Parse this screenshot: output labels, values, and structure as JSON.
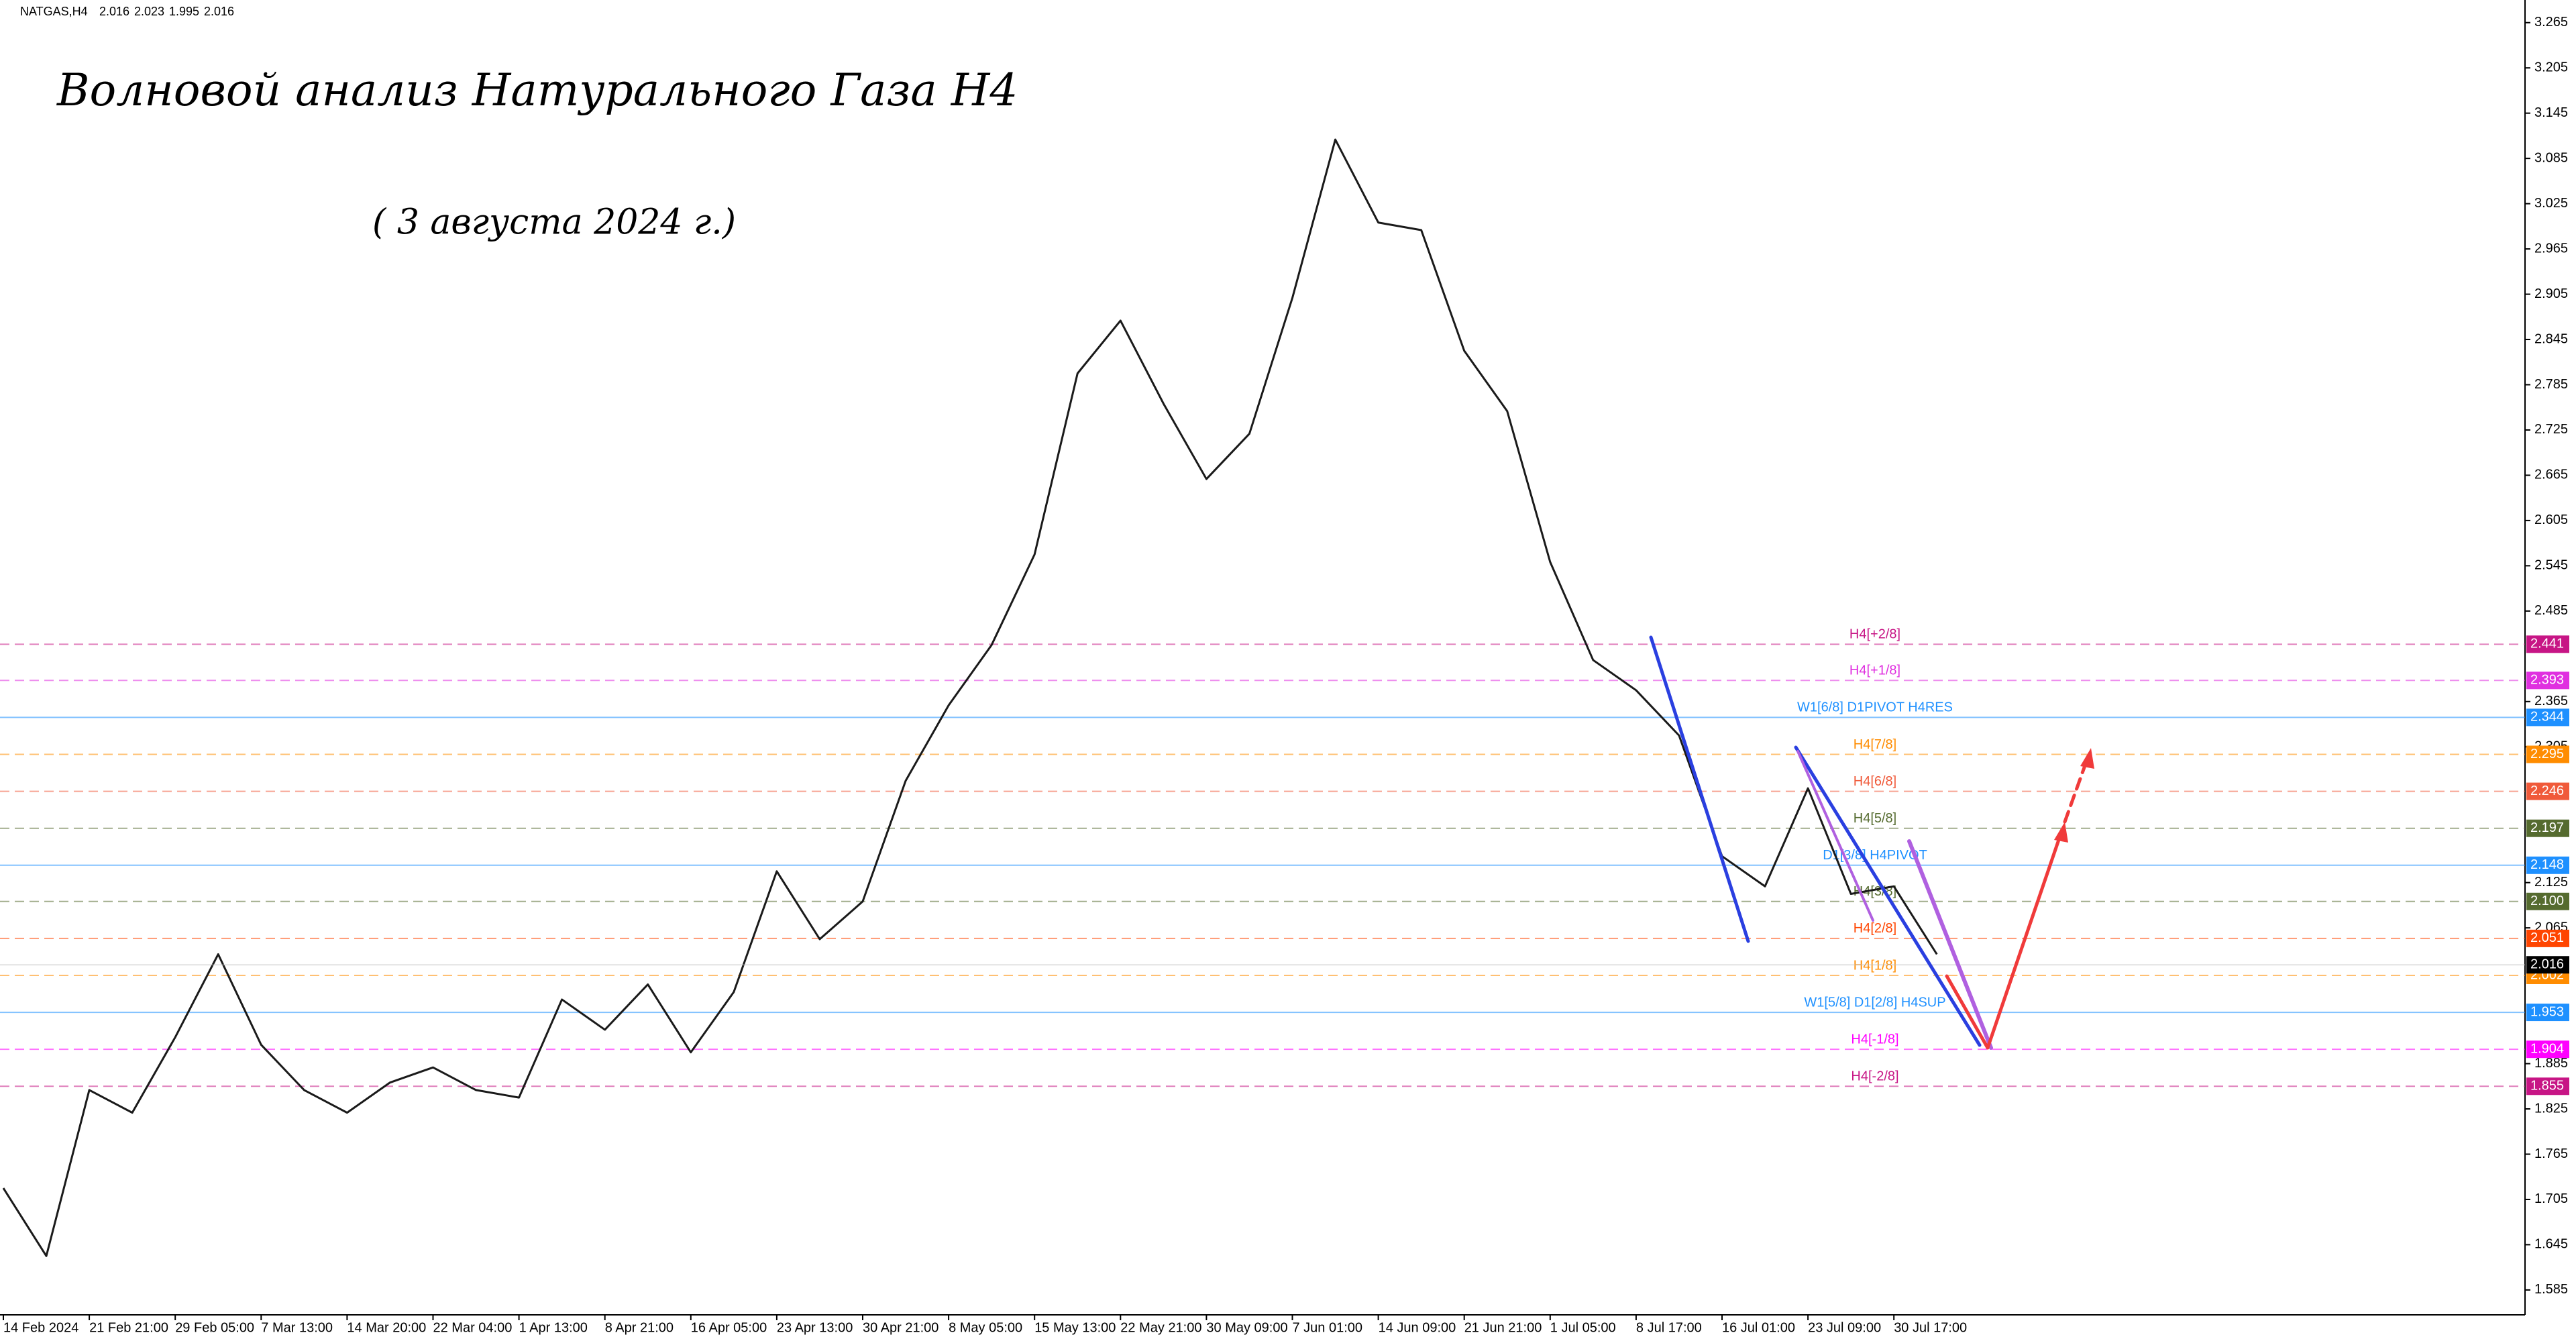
{
  "chart_data": {
    "type": "line",
    "symbol": "NATGAS,H4",
    "ohlc": [
      2.016,
      2.023,
      1.995,
      2.016
    ],
    "title": "Волновой анализ Натурального Газа H4",
    "subtitle": "( 3 августа 2024 г.)",
    "categories": [
      "14 Feb 2024",
      null,
      "21 Feb 21:00",
      null,
      "29 Feb 05:00",
      null,
      "7 Mar 13:00",
      null,
      "14 Mar 20:00",
      null,
      "22 Mar 04:00",
      null,
      "1 Apr 13:00",
      null,
      "8 Apr 21:00",
      null,
      "16 Apr 05:00",
      null,
      "23 Apr 13:00",
      null,
      "30 Apr 21:00",
      null,
      "8 May 05:00",
      null,
      "15 May 13:00",
      null,
      "22 May 21:00",
      null,
      "30 May 09:00",
      null,
      "7 Jun 01:00",
      null,
      "14 Jun 09:00",
      null,
      "21 Jun 21:00",
      null,
      "1 Jul 05:00",
      null,
      "8 Jul 17:00",
      null,
      "16 Jul 01:00",
      null,
      "23 Jul 09:00",
      null,
      "30 Jul 17:00",
      null
    ],
    "series": [
      {
        "color": "#1a1a1a",
        "values": [
          1.72,
          1.63,
          1.85,
          1.82,
          1.92,
          2.03,
          1.91,
          1.85,
          1.82,
          1.86,
          1.88,
          1.85,
          1.84,
          1.97,
          1.93,
          1.99,
          1.9,
          1.98,
          2.14,
          2.05,
          2.1,
          2.26,
          2.36,
          2.44,
          2.56,
          2.8,
          2.87,
          2.76,
          2.66,
          2.72,
          2.9,
          3.11,
          3.0,
          2.99,
          2.83,
          2.75,
          2.55,
          2.42,
          2.38,
          2.32,
          2.16,
          2.12,
          2.25,
          2.11,
          2.12,
          2.03
        ]
      }
    ],
    "ylim": [
      1.552,
      3.295
    ],
    "yticks": [
      3.265,
      3.205,
      3.145,
      3.085,
      3.025,
      2.965,
      2.905,
      2.845,
      2.785,
      2.725,
      2.665,
      2.605,
      2.545,
      2.485,
      2.365,
      2.305,
      2.125,
      2.065,
      1.885,
      1.825,
      1.765,
      1.705,
      1.645,
      1.585
    ],
    "last_price": 2.016,
    "last_color": "#000000",
    "levels": [
      {
        "name": "H4[+2/8]",
        "value": 2.441,
        "color": "#c71585",
        "dashed": true
      },
      {
        "name": "H4[+1/8]",
        "value": 2.393,
        "color": "#e030e0",
        "dashed": true
      },
      {
        "name": "W1[6/8] D1PIVOT H4RES",
        "value": 2.344,
        "color": "#1e90ff",
        "dashed": false
      },
      {
        "name": "H4[7/8]",
        "value": 2.295,
        "color": "#ff8c00",
        "dashed": true
      },
      {
        "name": "H4[6/8]",
        "value": 2.246,
        "color": "#f05a3a",
        "dashed": true
      },
      {
        "name": "H4[5/8]",
        "value": 2.197,
        "color": "#556b2f",
        "dashed": true
      },
      {
        "name": "D1[3/8] H4PIVOT",
        "value": 2.148,
        "color": "#1e90ff",
        "dashed": false
      },
      {
        "name": "H4[3/8]",
        "value": 2.1,
        "value_label": "2.100",
        "color": "#556b2f",
        "dashed": true
      },
      {
        "name": "H4[2/8]",
        "value": 2.051,
        "color": "#ff4500",
        "dashed": true
      },
      {
        "name": "H4[1/8]",
        "value": 2.002,
        "color": "#ff8c00",
        "dashed": true
      },
      {
        "name": "W1[5/8] D1[2/8] H4SUP",
        "value": 1.953,
        "color": "#1e90ff",
        "dashed": false
      },
      {
        "name": "H4[-1/8]",
        "value": 1.904,
        "color": "#ff00ff",
        "dashed": true
      },
      {
        "name": "H4[-2/8]",
        "value": 1.855,
        "color": "#c71585",
        "dashed": true
      }
    ]
  }
}
